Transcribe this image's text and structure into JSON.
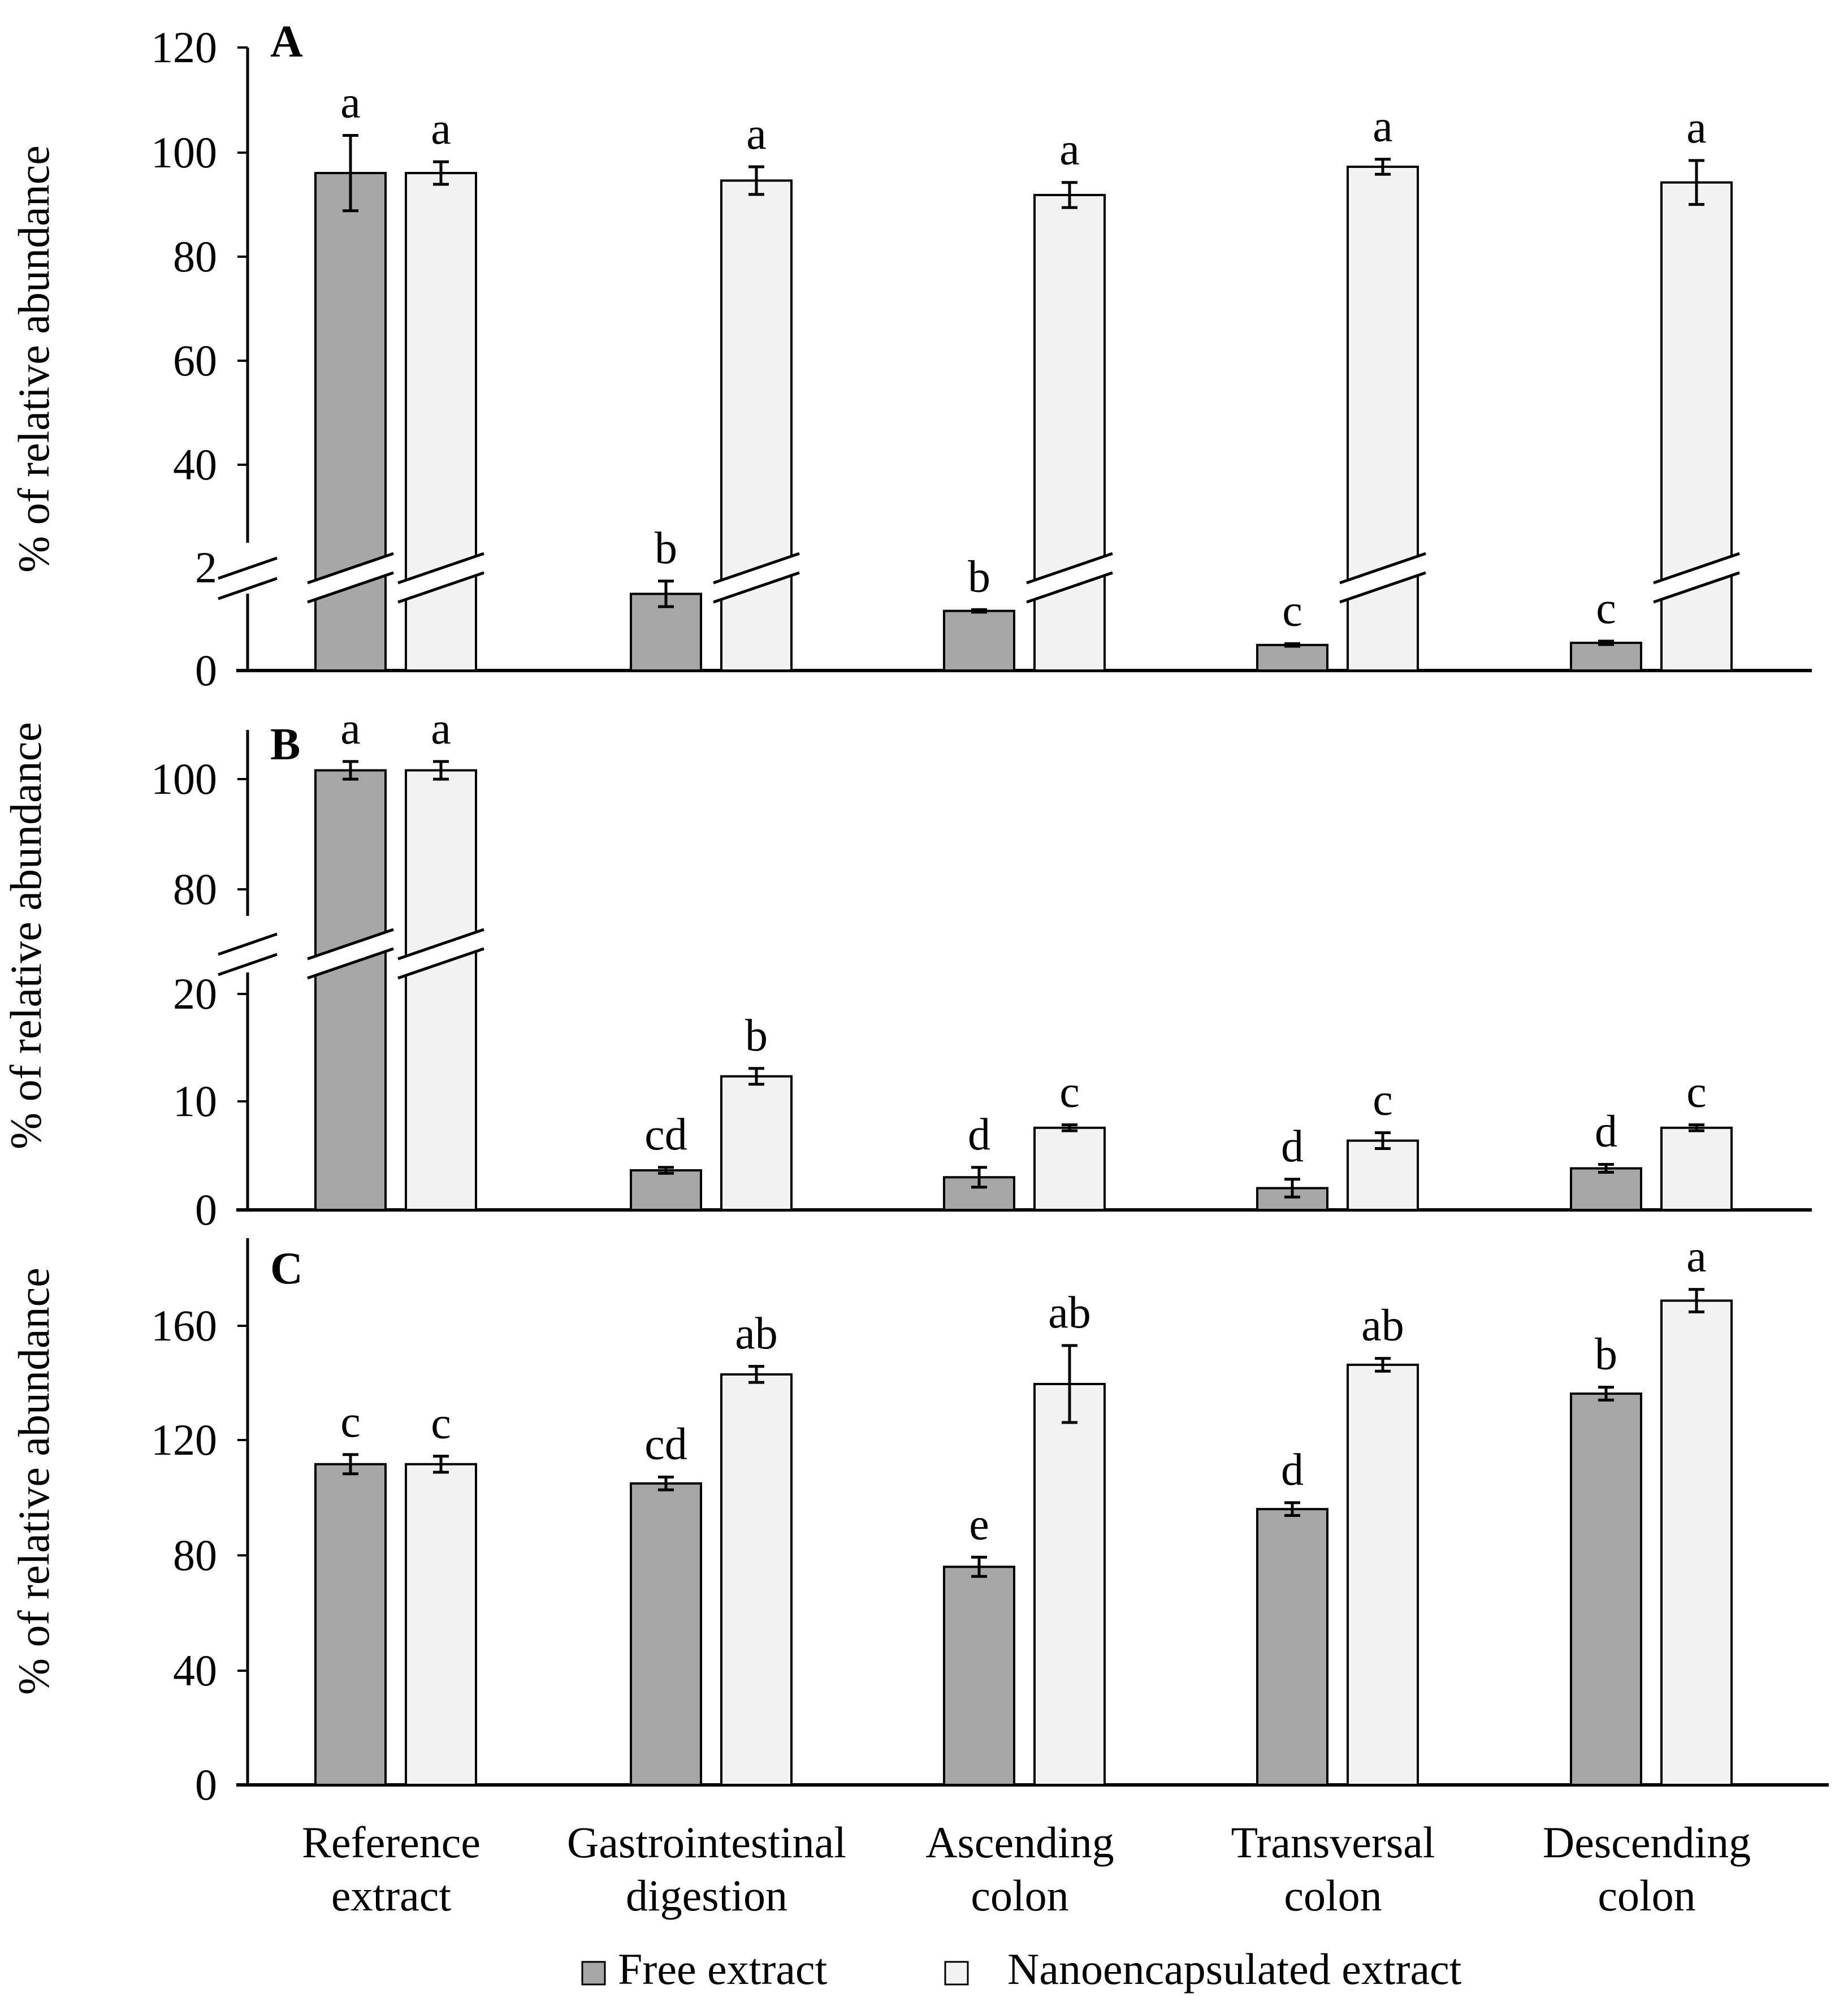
{
  "figure": {
    "legend": {
      "placement": "bottom-center",
      "items": [
        {
          "label": "Free extract",
          "color": "#a6a6a6"
        },
        {
          "label": "Nanoencapsulated extract",
          "color": "#f2f2f2"
        }
      ]
    }
  },
  "chart_data": [
    {
      "type": "bar",
      "panel_label": "A",
      "ylabel": "% of relative abundance",
      "axis_break": {
        "lower_range": [
          0,
          3
        ],
        "upper_range": [
          33,
          120
        ]
      },
      "yticks": [
        0,
        2,
        40,
        60,
        80,
        100,
        120
      ],
      "categories": [
        "Reference\nextract",
        "Gastrointestinal\ndigestion",
        "Ascending\ncolon",
        "Transversal\ncolon",
        "Descending\ncolon"
      ],
      "series": [
        {
          "name": "Free extract",
          "color": "#a6a6a6",
          "values": [
            100,
            1.8,
            1.4,
            0.6,
            0.65
          ],
          "errors": [
            6,
            0.3,
            0.03,
            0.03,
            0.04
          ],
          "letters": [
            "a",
            "b",
            "b",
            "c",
            "c"
          ]
        },
        {
          "name": "Nanoencapsulated extract",
          "color": "#f2f2f2",
          "values": [
            100,
            98.8,
            96.5,
            101,
            98.5
          ],
          "errors": [
            1.8,
            2.2,
            2,
            1.2,
            3.5
          ],
          "letters": [
            "a",
            "a",
            "a",
            "a",
            "a"
          ]
        }
      ]
    },
    {
      "type": "bar",
      "panel_label": "B",
      "ylabel": "% of relative abundance",
      "axis_break": {
        "lower_range": [
          0,
          24
        ],
        "upper_range": [
          72,
          105
        ]
      },
      "yticks": [
        0,
        10,
        20,
        80,
        100
      ],
      "categories": [
        "Reference\nextract",
        "Gastrointestinal\ndigestion",
        "Ascending\ncolon",
        "Transversal\ncolon",
        "Descending\ncolon"
      ],
      "series": [
        {
          "name": "Free extract",
          "color": "#a6a6a6",
          "values": [
            99.5,
            4,
            3.3,
            2.2,
            4.2
          ],
          "errors": [
            1.2,
            0.3,
            1,
            0.9,
            0.4
          ],
          "letters": [
            "a",
            "cd",
            "d",
            "d",
            "d"
          ]
        },
        {
          "name": "Nanoencapsulated extract",
          "color": "#f2f2f2",
          "values": [
            99.5,
            13.5,
            8.3,
            7,
            8.3
          ],
          "errors": [
            1.2,
            0.8,
            0.3,
            0.8,
            0.3
          ],
          "letters": [
            "a",
            "b",
            "c",
            "c",
            "c"
          ]
        }
      ]
    },
    {
      "type": "bar",
      "panel_label": "C",
      "ylabel": "% of relative abundance",
      "ylim": [
        0,
        180
      ],
      "yticks": [
        0,
        40,
        80,
        120,
        160
      ],
      "categories": [
        "Reference\nextract",
        "Gastrointestinal\ndigestion",
        "Ascending\ncolon",
        "Transversal\ncolon",
        "Descending\ncolon"
      ],
      "series": [
        {
          "name": "Free extract",
          "color": "#a6a6a6",
          "values": [
            100,
            94,
            68,
            86,
            122
          ],
          "errors": [
            3,
            2,
            3,
            2,
            2
          ],
          "letters": [
            "c",
            "cd",
            "e",
            "d",
            "b"
          ]
        },
        {
          "name": "Nanoencapsulated extract",
          "color": "#f2f2f2",
          "values": [
            100,
            128,
            125,
            131,
            151
          ],
          "errors": [
            2.5,
            2.5,
            12,
            2,
            3.5
          ],
          "letters": [
            "c",
            "ab",
            "ab",
            "ab",
            "a"
          ]
        }
      ]
    }
  ]
}
